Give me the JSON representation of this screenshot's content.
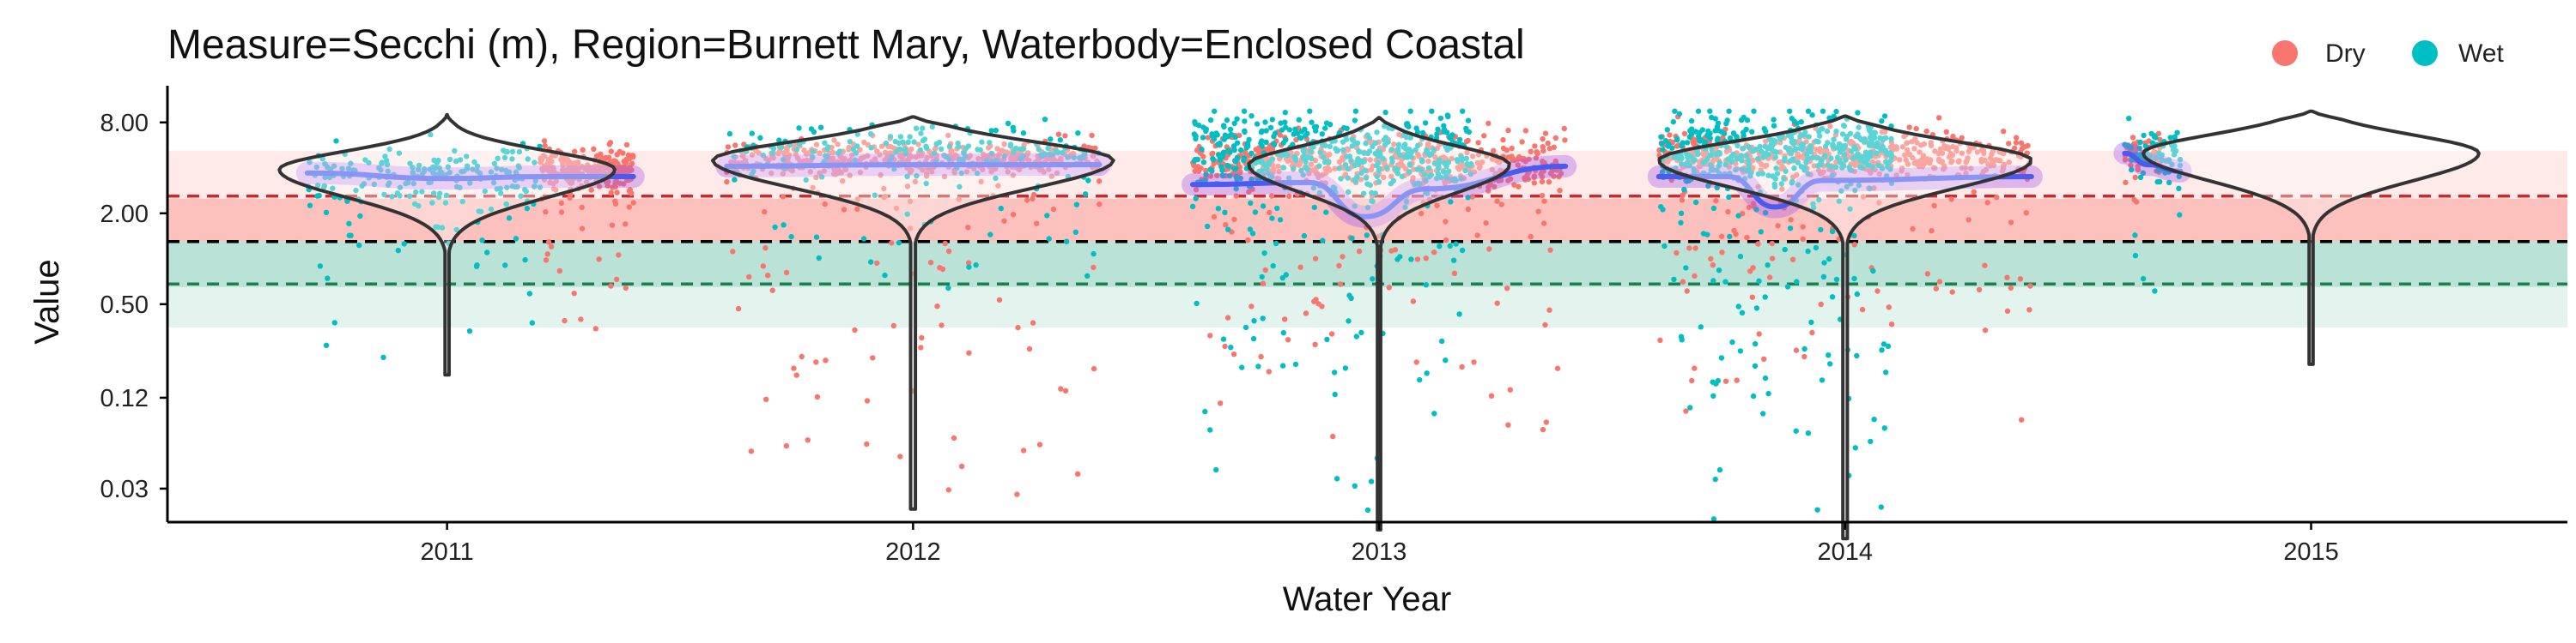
{
  "chart_data": {
    "type": "scatter",
    "title": "Measure=Secchi (m), Region=Burnett Mary, Waterbody=Enclosed Coastal",
    "xlabel": "Water Year",
    "ylabel": "Value",
    "y_scale": "log",
    "ylim": [
      0.018,
      14
    ],
    "y_ticks": [
      {
        "value": 8,
        "label": "8.00"
      },
      {
        "value": 2,
        "label": "2.00"
      },
      {
        "value": 0.5,
        "label": "0.50"
      },
      {
        "value": 0.12,
        "label": "0.12"
      },
      {
        "value": 0.03,
        "label": "0.03"
      }
    ],
    "x_categories": [
      "2011",
      "2012",
      "2013",
      "2014",
      "2015"
    ],
    "legend": {
      "position": "top-right",
      "entries": [
        {
          "name": "Dry",
          "color": "#F8766D"
        },
        {
          "name": "Wet",
          "color": "#00BFC4"
        }
      ]
    },
    "reference_bands": [
      {
        "from": 2.5,
        "to": 5.2,
        "color": "#F8766D",
        "opacity": 0.15
      },
      {
        "from": 1.3,
        "to": 2.5,
        "color": "#F8766D",
        "opacity": 0.45
      },
      {
        "from": 0.65,
        "to": 1.3,
        "color": "#1B9E77",
        "opacity": 0.3
      },
      {
        "from": 0.35,
        "to": 0.65,
        "color": "#1B9E77",
        "opacity": 0.12
      }
    ],
    "reference_lines": [
      {
        "value": 2.6,
        "color": "#D62728",
        "style": "dashed"
      },
      {
        "value": 1.3,
        "color": "#000000",
        "style": "dashed"
      },
      {
        "value": 0.68,
        "color": "#1B7F4F",
        "style": "dashed"
      }
    ],
    "series": [
      {
        "year": "2011",
        "violin": {
          "center": 2011,
          "min": 0.17,
          "max": 9.0,
          "mode": 3.9,
          "peak_halfwidth": 0.36
        },
        "trend": [
          [
            2010.7,
            3.7
          ],
          [
            2011.0,
            3.4
          ],
          [
            2011.2,
            3.5
          ],
          [
            2011.4,
            3.5
          ]
        ],
        "dry": {
          "median": 4.0,
          "sd_log": 0.28,
          "n": 260,
          "range": [
            2011.2,
            2011.4
          ],
          "low_min": 0.3
        },
        "wet": {
          "median": 3.6,
          "sd_log": 0.35,
          "n": 220,
          "range": [
            2010.7,
            2011.2
          ],
          "low_min": 0.15
        }
      },
      {
        "year": "2012",
        "violin": {
          "center": 2012,
          "min": 0.022,
          "max": 8.7,
          "mode": 4.5,
          "peak_halfwidth": 0.43
        },
        "trend": [
          [
            2011.6,
            4.1
          ],
          [
            2012.0,
            4.2
          ],
          [
            2012.4,
            4.2
          ]
        ],
        "dry": {
          "median": 4.6,
          "sd_log": 0.22,
          "n": 520,
          "range": [
            2011.6,
            2012.4
          ],
          "low_min": 0.022
        },
        "wet": {
          "median": 5.2,
          "sd_log": 0.3,
          "n": 200,
          "range": [
            2011.6,
            2012.4
          ],
          "low_min": 0.3
        }
      },
      {
        "year": "2013",
        "violin": {
          "center": 2013,
          "min": 0.016,
          "max": 8.6,
          "mode": 4.2,
          "peak_halfwidth": 0.28
        },
        "trend": [
          [
            2012.6,
            3.1
          ],
          [
            2012.85,
            3.2
          ],
          [
            2012.97,
            1.9
          ],
          [
            2013.1,
            2.9
          ],
          [
            2013.4,
            4.1
          ]
        ],
        "dry": {
          "median": 4.5,
          "sd_log": 0.35,
          "n": 580,
          "range": [
            2012.6,
            2013.4
          ],
          "low_min": 0.06
        },
        "wet": {
          "median": 5.0,
          "sd_log": 0.55,
          "n": 520,
          "range": [
            2012.6,
            2013.2
          ],
          "low_min": 0.018
        }
      },
      {
        "year": "2014",
        "violin": {
          "center": 2014,
          "min": 0.014,
          "max": 8.8,
          "mode": 4.5,
          "peak_halfwidth": 0.4
        },
        "trend": [
          [
            2013.6,
            3.5
          ],
          [
            2013.75,
            3.5
          ],
          [
            2013.85,
            2.2
          ],
          [
            2013.95,
            3.3
          ],
          [
            2014.4,
            3.5
          ]
        ],
        "dry": {
          "median": 4.8,
          "sd_log": 0.3,
          "n": 560,
          "range": [
            2013.6,
            2014.4
          ],
          "low_min": 0.08
        },
        "wet": {
          "median": 5.2,
          "sd_log": 0.5,
          "n": 500,
          "range": [
            2013.6,
            2014.1
          ],
          "low_min": 0.015
        }
      },
      {
        "year": "2015",
        "violin": {
          "center": 2015,
          "min": 0.2,
          "max": 9.5,
          "mode": 5.0,
          "peak_halfwidth": 0.36
        },
        "trend": [
          [
            2014.6,
            5.0
          ],
          [
            2014.65,
            4.2
          ],
          [
            2014.72,
            3.8
          ]
        ],
        "dry": {
          "median": 5.0,
          "sd_log": 0.2,
          "n": 60,
          "range": [
            2014.6,
            2014.68
          ],
          "low_min": 2.0
        },
        "wet": {
          "median": 5.0,
          "sd_log": 0.3,
          "n": 70,
          "range": [
            2014.6,
            2014.72
          ],
          "low_min": 0.2
        }
      }
    ]
  }
}
